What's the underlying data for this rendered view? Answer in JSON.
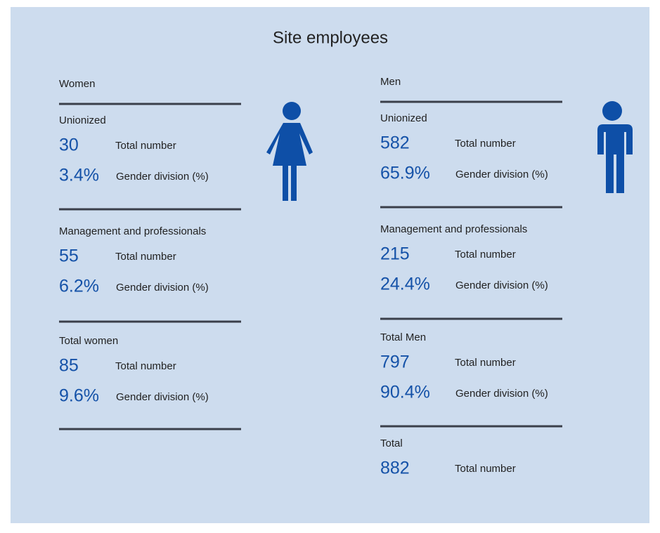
{
  "title": "Site employees",
  "columns": [
    {
      "heading": "Women",
      "groups": [
        {
          "label": "Unionized",
          "total": "30",
          "total_label": "Total number",
          "share": "3.4%",
          "share_label": "Gender division (%)"
        },
        {
          "label": "Management and professionals",
          "total": "55",
          "total_label": "Total number",
          "share": "6.2%",
          "share_label": "Gender division (%)"
        },
        {
          "label": "Total women",
          "total": "85",
          "total_label": "Total number",
          "share": "9.6%",
          "share_label": "Gender division (%)"
        }
      ]
    },
    {
      "heading": "Men",
      "groups": [
        {
          "label": "Unionized",
          "total": "582",
          "total_label": "Total number",
          "share": "65.9%",
          "share_label": "Gender division (%)"
        },
        {
          "label": "Management and professionals",
          "total": "215",
          "total_label": "Total number",
          "share": "24.4%",
          "share_label": "Gender division (%)"
        },
        {
          "label": "Total Men",
          "total": "797",
          "total_label": "Total number",
          "share": "90.4%",
          "share_label": "Gender division (%)"
        },
        {
          "label": "Total",
          "total": "882",
          "total_label": "Total number"
        }
      ]
    }
  ]
}
